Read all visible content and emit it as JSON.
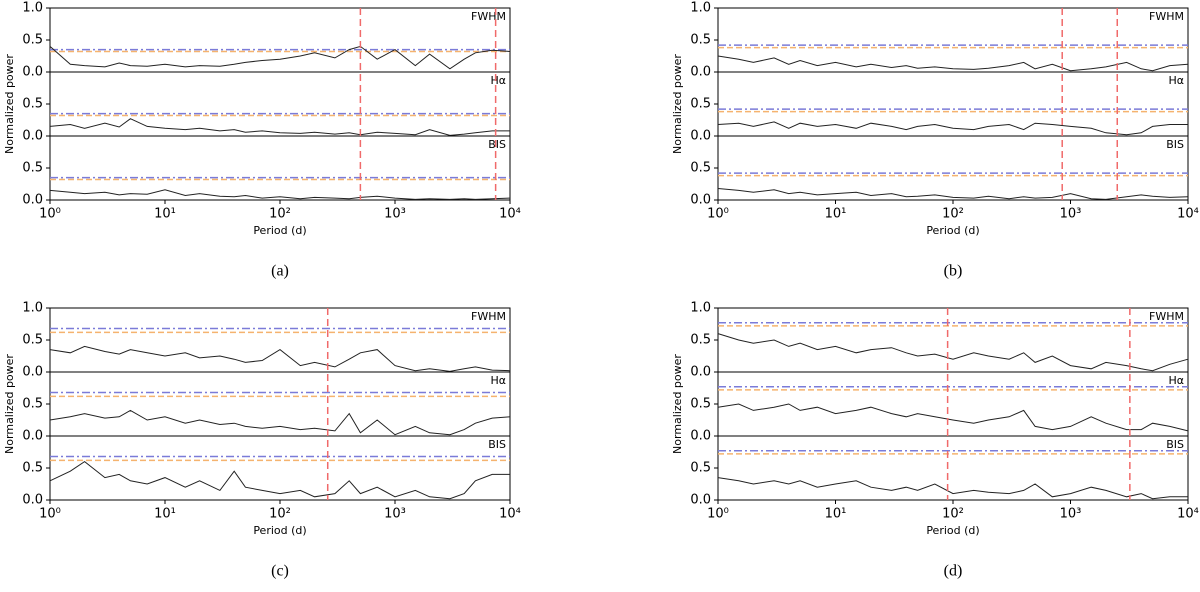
{
  "chart_data": [
    {
      "type": "line",
      "caption": "(a)",
      "xlabel": "Period (d)",
      "ylabel": "Normalized power",
      "xlog": true,
      "xlim": [
        1,
        10000
      ],
      "xticks": [
        {
          "value": 1,
          "label": "10⁰"
        },
        {
          "value": 10,
          "label": "10¹"
        },
        {
          "value": 100,
          "label": "10²"
        },
        {
          "value": 1000,
          "label": "10³"
        },
        {
          "value": 10000,
          "label": "10⁴"
        }
      ],
      "x": [
        1,
        1.5,
        2,
        3,
        4,
        5,
        7,
        10,
        15,
        20,
        30,
        40,
        50,
        70,
        100,
        150,
        200,
        300,
        400,
        500,
        700,
        1000,
        1500,
        2000,
        3000,
        4000,
        5000,
        7000,
        10000
      ],
      "thresholds": [
        {
          "color": "#7b7bd8",
          "value": 0.35
        },
        {
          "color": "#f5b36f",
          "value": 0.32
        }
      ],
      "vlines": [
        500,
        7500
      ],
      "subplots": [
        {
          "name": "FWHM",
          "ylim": [
            0,
            1
          ],
          "yticks": [
            {
              "value": 0,
              "label": "0.0"
            },
            {
              "value": 0.5,
              "label": "0.5"
            },
            {
              "value": 1,
              "label": "1.0"
            }
          ],
          "values": [
            0.4,
            0.12,
            0.1,
            0.08,
            0.14,
            0.1,
            0.09,
            0.12,
            0.08,
            0.1,
            0.09,
            0.12,
            0.15,
            0.18,
            0.2,
            0.25,
            0.3,
            0.22,
            0.35,
            0.4,
            0.2,
            0.35,
            0.1,
            0.28,
            0.05,
            0.2,
            0.3,
            0.34,
            0.32
          ]
        },
        {
          "name": "Hα",
          "ylim": [
            0,
            1
          ],
          "yticks": [
            {
              "value": 0,
              "label": "0.0"
            },
            {
              "value": 0.5,
              "label": "0.5"
            }
          ],
          "values": [
            0.15,
            0.18,
            0.12,
            0.2,
            0.14,
            0.27,
            0.15,
            0.12,
            0.1,
            0.12,
            0.08,
            0.1,
            0.06,
            0.08,
            0.05,
            0.04,
            0.06,
            0.03,
            0.05,
            0.02,
            0.06,
            0.04,
            0.02,
            0.1,
            0.01,
            0.03,
            0.05,
            0.08,
            0.08
          ]
        },
        {
          "name": "BIS",
          "ylim": [
            0,
            1
          ],
          "yticks": [
            {
              "value": 0,
              "label": "0.0"
            },
            {
              "value": 0.5,
              "label": "0.5"
            }
          ],
          "values": [
            0.15,
            0.12,
            0.1,
            0.12,
            0.08,
            0.1,
            0.09,
            0.16,
            0.07,
            0.1,
            0.06,
            0.05,
            0.07,
            0.03,
            0.05,
            0.02,
            0.04,
            0.03,
            0.02,
            0.04,
            0.06,
            0.03,
            0.01,
            0.02,
            0.01,
            0.02,
            0.01,
            0.02,
            0.03
          ]
        }
      ]
    },
    {
      "type": "line",
      "caption": "(b)",
      "xlabel": "Period (d)",
      "ylabel": "Normalized power",
      "xlog": true,
      "xlim": [
        1,
        10000
      ],
      "xticks": [
        {
          "value": 1,
          "label": "10⁰"
        },
        {
          "value": 10,
          "label": "10¹"
        },
        {
          "value": 100,
          "label": "10²"
        },
        {
          "value": 1000,
          "label": "10³"
        },
        {
          "value": 10000,
          "label": "10⁴"
        }
      ],
      "x": [
        1,
        1.5,
        2,
        3,
        4,
        5,
        7,
        10,
        15,
        20,
        30,
        40,
        50,
        70,
        100,
        150,
        200,
        300,
        400,
        500,
        700,
        1000,
        1500,
        2000,
        3000,
        4000,
        5000,
        7000,
        10000
      ],
      "thresholds": [
        {
          "color": "#7b7bd8",
          "value": 0.42
        },
        {
          "color": "#f5b36f",
          "value": 0.38
        }
      ],
      "vlines": [
        850,
        2500
      ],
      "subplots": [
        {
          "name": "FWHM",
          "ylim": [
            0,
            1
          ],
          "yticks": [
            {
              "value": 0,
              "label": "0.0"
            },
            {
              "value": 0.5,
              "label": "0.5"
            },
            {
              "value": 1,
              "label": "1.0"
            }
          ],
          "values": [
            0.25,
            0.2,
            0.15,
            0.22,
            0.12,
            0.18,
            0.1,
            0.15,
            0.08,
            0.12,
            0.07,
            0.1,
            0.06,
            0.08,
            0.05,
            0.04,
            0.06,
            0.1,
            0.15,
            0.05,
            0.12,
            0.02,
            0.05,
            0.08,
            0.15,
            0.05,
            0.02,
            0.1,
            0.12
          ]
        },
        {
          "name": "Hα",
          "ylim": [
            0,
            1
          ],
          "yticks": [
            {
              "value": 0,
              "label": "0.0"
            },
            {
              "value": 0.5,
              "label": "0.5"
            }
          ],
          "values": [
            0.18,
            0.2,
            0.15,
            0.22,
            0.12,
            0.2,
            0.15,
            0.18,
            0.12,
            0.2,
            0.15,
            0.1,
            0.15,
            0.18,
            0.12,
            0.1,
            0.15,
            0.18,
            0.1,
            0.2,
            0.18,
            0.15,
            0.12,
            0.05,
            0.02,
            0.05,
            0.15,
            0.18,
            0.18
          ]
        },
        {
          "name": "BIS",
          "ylim": [
            0,
            1
          ],
          "yticks": [
            {
              "value": 0,
              "label": "0.0"
            },
            {
              "value": 0.5,
              "label": "0.5"
            }
          ],
          "values": [
            0.18,
            0.15,
            0.12,
            0.16,
            0.1,
            0.12,
            0.08,
            0.1,
            0.12,
            0.07,
            0.1,
            0.05,
            0.06,
            0.08,
            0.04,
            0.03,
            0.06,
            0.02,
            0.05,
            0.03,
            0.04,
            0.1,
            0.02,
            0.01,
            0.05,
            0.08,
            0.06,
            0.04,
            0.05
          ]
        }
      ]
    },
    {
      "type": "line",
      "caption": "(c)",
      "xlabel": "Period (d)",
      "ylabel": "Normalized power",
      "xlog": true,
      "xlim": [
        1,
        10000
      ],
      "xticks": [
        {
          "value": 1,
          "label": "10⁰"
        },
        {
          "value": 10,
          "label": "10¹"
        },
        {
          "value": 100,
          "label": "10²"
        },
        {
          "value": 1000,
          "label": "10³"
        },
        {
          "value": 10000,
          "label": "10⁴"
        }
      ],
      "x": [
        1,
        1.5,
        2,
        3,
        4,
        5,
        7,
        10,
        15,
        20,
        30,
        40,
        50,
        70,
        100,
        150,
        200,
        300,
        400,
        500,
        700,
        1000,
        1500,
        2000,
        3000,
        4000,
        5000,
        7000,
        10000
      ],
      "thresholds": [
        {
          "color": "#7b7bd8",
          "value": 0.68
        },
        {
          "color": "#f5b36f",
          "value": 0.62
        }
      ],
      "vlines": [
        260
      ],
      "subplots": [
        {
          "name": "FWHM",
          "ylim": [
            0,
            1
          ],
          "yticks": [
            {
              "value": 0,
              "label": "0.0"
            },
            {
              "value": 0.5,
              "label": "0.5"
            },
            {
              "value": 1,
              "label": "1.0"
            }
          ],
          "values": [
            0.35,
            0.3,
            0.4,
            0.32,
            0.28,
            0.35,
            0.3,
            0.25,
            0.3,
            0.22,
            0.25,
            0.2,
            0.15,
            0.18,
            0.35,
            0.1,
            0.15,
            0.08,
            0.2,
            0.3,
            0.35,
            0.1,
            0.02,
            0.05,
            0.01,
            0.05,
            0.08,
            0.03,
            0.02
          ]
        },
        {
          "name": "Hα",
          "ylim": [
            0,
            1
          ],
          "yticks": [
            {
              "value": 0,
              "label": "0.0"
            },
            {
              "value": 0.5,
              "label": "0.5"
            }
          ],
          "values": [
            0.25,
            0.3,
            0.35,
            0.28,
            0.3,
            0.4,
            0.25,
            0.3,
            0.2,
            0.25,
            0.18,
            0.2,
            0.15,
            0.12,
            0.15,
            0.1,
            0.12,
            0.08,
            0.35,
            0.05,
            0.25,
            0.02,
            0.15,
            0.05,
            0.02,
            0.1,
            0.2,
            0.28,
            0.3
          ]
        },
        {
          "name": "BIS",
          "ylim": [
            0,
            1
          ],
          "yticks": [
            {
              "value": 0,
              "label": "0.0"
            },
            {
              "value": 0.5,
              "label": "0.5"
            }
          ],
          "values": [
            0.3,
            0.45,
            0.6,
            0.35,
            0.4,
            0.3,
            0.25,
            0.35,
            0.2,
            0.3,
            0.15,
            0.45,
            0.2,
            0.15,
            0.1,
            0.15,
            0.05,
            0.1,
            0.3,
            0.1,
            0.2,
            0.05,
            0.15,
            0.05,
            0.02,
            0.1,
            0.3,
            0.4,
            0.4
          ]
        }
      ]
    },
    {
      "type": "line",
      "caption": "(d)",
      "xlabel": "Period (d)",
      "ylabel": "Normalized power",
      "xlog": true,
      "xlim": [
        1,
        10000
      ],
      "xticks": [
        {
          "value": 1,
          "label": "10⁰"
        },
        {
          "value": 10,
          "label": "10¹"
        },
        {
          "value": 100,
          "label": "10²"
        },
        {
          "value": 1000,
          "label": "10³"
        },
        {
          "value": 10000,
          "label": "10⁴"
        }
      ],
      "x": [
        1,
        1.5,
        2,
        3,
        4,
        5,
        7,
        10,
        15,
        20,
        30,
        40,
        50,
        70,
        100,
        150,
        200,
        300,
        400,
        500,
        700,
        1000,
        1500,
        2000,
        3000,
        4000,
        5000,
        7000,
        10000
      ],
      "thresholds": [
        {
          "color": "#7b7bd8",
          "value": 0.77
        },
        {
          "color": "#f5b36f",
          "value": 0.72
        }
      ],
      "vlines": [
        90,
        3200
      ],
      "subplots": [
        {
          "name": "FWHM",
          "ylim": [
            0,
            1
          ],
          "yticks": [
            {
              "value": 0,
              "label": "0.0"
            },
            {
              "value": 0.5,
              "label": "0.5"
            },
            {
              "value": 1,
              "label": "1.0"
            }
          ],
          "values": [
            0.6,
            0.5,
            0.45,
            0.5,
            0.4,
            0.45,
            0.35,
            0.4,
            0.3,
            0.35,
            0.38,
            0.3,
            0.25,
            0.28,
            0.2,
            0.3,
            0.25,
            0.2,
            0.3,
            0.15,
            0.25,
            0.1,
            0.05,
            0.15,
            0.1,
            0.05,
            0.02,
            0.12,
            0.2
          ]
        },
        {
          "name": "Hα",
          "ylim": [
            0,
            1
          ],
          "yticks": [
            {
              "value": 0,
              "label": "0.0"
            },
            {
              "value": 0.5,
              "label": "0.5"
            }
          ],
          "values": [
            0.45,
            0.5,
            0.4,
            0.45,
            0.5,
            0.4,
            0.45,
            0.35,
            0.4,
            0.45,
            0.35,
            0.3,
            0.35,
            0.3,
            0.25,
            0.2,
            0.25,
            0.3,
            0.4,
            0.15,
            0.1,
            0.15,
            0.3,
            0.2,
            0.1,
            0.1,
            0.2,
            0.15,
            0.08
          ]
        },
        {
          "name": "BIS",
          "ylim": [
            0,
            1
          ],
          "yticks": [
            {
              "value": 0,
              "label": "0.0"
            },
            {
              "value": 0.5,
              "label": "0.5"
            }
          ],
          "values": [
            0.35,
            0.3,
            0.25,
            0.3,
            0.25,
            0.3,
            0.2,
            0.25,
            0.3,
            0.2,
            0.15,
            0.2,
            0.15,
            0.25,
            0.1,
            0.15,
            0.12,
            0.1,
            0.15,
            0.25,
            0.05,
            0.1,
            0.2,
            0.15,
            0.05,
            0.1,
            0.02,
            0.05,
            0.05
          ]
        }
      ]
    }
  ]
}
